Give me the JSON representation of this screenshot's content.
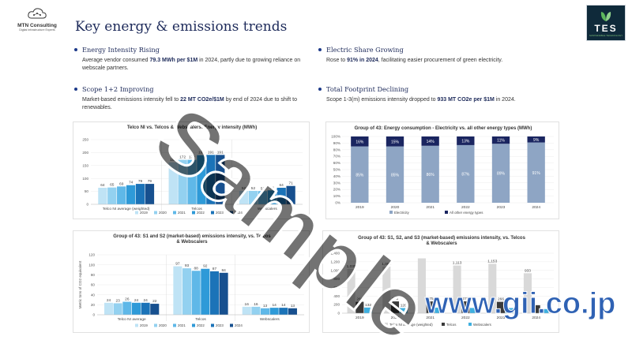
{
  "header": {
    "title": "Key energy & emissions trends",
    "mtn_name": "MTN Consulting",
    "mtn_tagline": "Digital Infrastructure Experts",
    "tes_word": "TES",
    "tes_sub": "SUSTAINABLE TECHNOLOGY"
  },
  "bullets": [
    {
      "head": "Energy Intensity Rising",
      "pre": "Average vendor consumed ",
      "bold": "79.3 MWh per $1M",
      "post": " in 2024, partly due to growing reliance on webscale partners."
    },
    {
      "head": "Electric Share Growing",
      "pre": "Rose to ",
      "bold": "91% in 2024",
      "post": ", facilitating easier procurement of green electricity."
    },
    {
      "head": "Scope 1+2 Improving",
      "pre": "Market-based emissions intensity fell to ",
      "bold": "22 MT CO2e/$1M",
      "post": " by end of 2024 due to shift to renewables."
    },
    {
      "head": "Total Footprint Declining",
      "pre": "Scope 1-3(m) emissions intensity dropped to ",
      "bold": "933 MT CO2e per $1M",
      "post": " in 2024."
    }
  ],
  "watermark": "Sample",
  "gii": "www.gii.co.jp",
  "colors": [
    "#bfe3f5",
    "#93d1f0",
    "#5fb8e8",
    "#2e9ad8",
    "#1b73b8",
    "#17508f"
  ],
  "chart_data": [
    {
      "type": "bar",
      "title": "Telco NI vs. Telcos & Webscalers: Energy intensity (MWh)",
      "categories": [
        "Telco NI average (weighted)",
        "Telcos",
        "Webscalers"
      ],
      "series": [
        {
          "name": "2019",
          "values": [
            64,
            162,
            52
          ]
        },
        {
          "name": "2020",
          "values": [
            65,
            172,
            52
          ]
        },
        {
          "name": "2021",
          "values": [
            69,
            172,
            51
          ]
        },
        {
          "name": "2022",
          "values": [
            74,
            190,
            54
          ]
        },
        {
          "name": "2023",
          "values": [
            79,
            191,
            64
          ]
        },
        {
          "name": "2024",
          "values": [
            79,
            191,
            71
          ]
        }
      ],
      "yticks": [
        "0",
        "50",
        "100",
        "150",
        "200",
        "250"
      ],
      "ylim": [
        0,
        250
      ]
    },
    {
      "type": "bar",
      "title": "Group of 43: Energy consumption - Electricity vs. all other energy types (MWh)",
      "categories": [
        "2019",
        "2020",
        "2021",
        "2022",
        "2023",
        "2024"
      ],
      "series": [
        {
          "name": "Electricity",
          "values": [
            85,
            85,
            86,
            87,
            89,
            91
          ]
        },
        {
          "name": "All other energy types",
          "values": [
            16,
            15,
            14,
            13,
            11,
            9
          ]
        }
      ],
      "yticks": [
        "0%",
        "10%",
        "20%",
        "30%",
        "40%",
        "50%",
        "60%",
        "70%",
        "80%",
        "90%",
        "100%"
      ],
      "legend_text": "Electricity          All other energy types",
      "ylim": [
        0,
        100
      ]
    },
    {
      "type": "bar",
      "title": "Group of 43: S1 and S2 (market-based) emissions intensity, vs. Telcos & Webscalers",
      "ylabel": "Metric tons of CO2 equivalent",
      "categories": [
        "Telco NI average",
        "Telcos",
        "Webscalers"
      ],
      "series": [
        {
          "name": "2019",
          "values": [
            24,
            97,
            16
          ]
        },
        {
          "name": "2020",
          "values": [
            23,
            93,
            16
          ]
        },
        {
          "name": "2021",
          "values": [
            26,
            88,
            13
          ]
        },
        {
          "name": "2022",
          "values": [
            24,
            92,
            14
          ]
        },
        {
          "name": "2023",
          "values": [
            24,
            87,
            14
          ]
        },
        {
          "name": "2024",
          "values": [
            22,
            84,
            13
          ]
        }
      ],
      "yticks": [
        "0",
        "20",
        "40",
        "60",
        "80",
        "100",
        "120"
      ],
      "ylim": [
        0,
        120
      ]
    },
    {
      "type": "bar",
      "title": "Group of 43: S1, S2, and S3 (market-based) emissions intensity, vs. Telcos & Webscalers",
      "categories": [
        "2019",
        "2020",
        "2021",
        "2022",
        "2023",
        "2024"
      ],
      "series": [
        {
          "name": "Telco NI average (weighted)",
          "values": [
            1035,
            1088,
            1280,
            1113,
            1153,
            933
          ]
        },
        {
          "name": "Telcos",
          "values": [
            266,
            275,
            275,
            277,
            266,
            186
          ]
        },
        {
          "name": "Webscalers",
          "values": [
            132,
            120,
            130,
            122,
            120,
            96
          ]
        }
      ],
      "labels": {
        "Telco NI average (weighted)": [
          "1,035",
          "1,088",
          "",
          "1,113",
          "1,153",
          "933"
        ],
        "Telcos": [
          "266",
          "275",
          "275",
          "277",
          "266",
          ""
        ],
        "Webscalers": [
          "132",
          "120",
          "",
          "",
          "",
          ""
        ]
      },
      "yticks": [
        "0",
        "200",
        "400",
        "600",
        "800",
        "1,000",
        "1,200",
        "1,400"
      ],
      "ylim": [
        0,
        1400
      ]
    }
  ]
}
